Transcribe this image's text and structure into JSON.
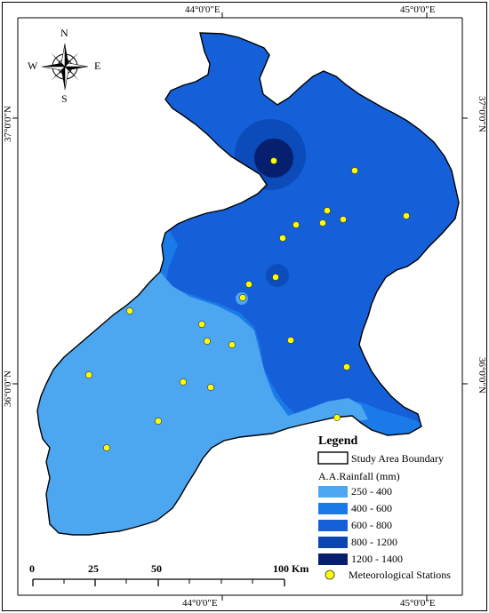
{
  "compass": {
    "n": "N",
    "s": "S",
    "e": "E",
    "w": "W"
  },
  "coords": {
    "top": [
      "44°0'0\"E",
      "45°0'0\"E"
    ],
    "bottom": [
      "44°0'0\"E",
      "45°0'0\"E"
    ],
    "left": [
      "37°0'0\"N",
      "36°0'0\"N"
    ],
    "right": [
      "37°0'0\"N",
      "36°0'0\"N"
    ]
  },
  "scale": {
    "labels": [
      "0",
      "25",
      "50",
      "100 Km"
    ]
  },
  "legend": {
    "title": "Legend",
    "boundary_label": "Study Area Boundary",
    "rain_title": "A.A.Rainfall (mm)",
    "classes": [
      {
        "label": "250 - 400",
        "color": "#4da6f0"
      },
      {
        "label": "400 - 600",
        "color": "#1a7ae8"
      },
      {
        "label": "600 - 800",
        "color": "#1560d8"
      },
      {
        "label": "800 - 1200",
        "color": "#0a45b0"
      },
      {
        "label": "1200 - 1400",
        "color": "#061f6e"
      }
    ],
    "stations_label": "Meteorological Stations"
  }
}
